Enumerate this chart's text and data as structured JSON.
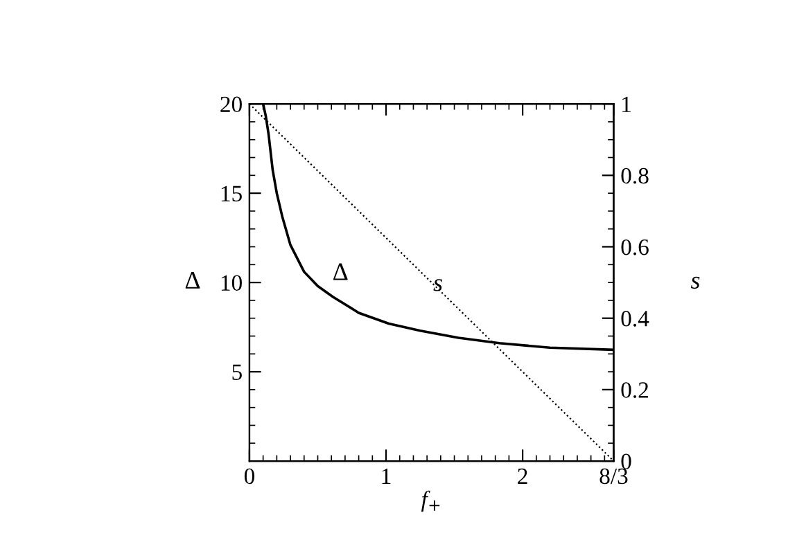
{
  "chart_data": {
    "type": "line",
    "xlabel": "f$_{+}$",
    "ylabel": "Δ",
    "y2label": "s",
    "xlim": [
      0,
      2.6667
    ],
    "xticks": [
      0,
      1,
      2,
      {
        "value": 2.6667,
        "label": "8/3"
      }
    ],
    "ylim": [
      0,
      20
    ],
    "yticks": [
      5,
      10,
      15,
      20
    ],
    "y2lim": [
      0,
      1
    ],
    "y2ticks": [
      0,
      0.2,
      0.4,
      0.6,
      0.8,
      1
    ],
    "series": [
      {
        "name": "Δ",
        "color": "#000000",
        "line_style": "solid",
        "x": [
          0.1,
          0.12,
          0.14,
          0.17,
          0.2,
          0.24,
          0.3,
          0.4,
          0.5,
          0.61,
          0.8,
          1.02,
          1.25,
          1.53,
          1.83,
          2.2,
          2.6667
        ],
        "values": [
          20,
          19.3,
          18.3,
          16.3,
          15,
          13.7,
          12.1,
          10.6,
          9.8,
          9.2,
          8.3,
          7.7,
          7.3,
          6.9,
          6.6,
          6.35,
          6.23
        ]
      },
      {
        "name": "s",
        "color": "#000000",
        "line_style": "dotted",
        "axis": "y2",
        "x": [
          0,
          2.6667
        ],
        "values": [
          1,
          0
        ]
      }
    ],
    "grid": false,
    "legend": false
  }
}
